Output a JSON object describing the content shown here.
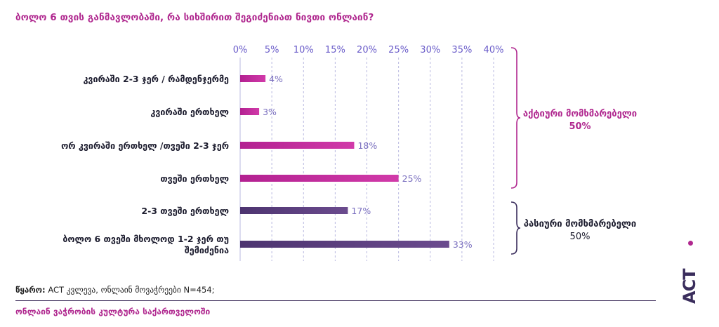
{
  "title": "ბოლო 6 თვის განმავლობაში, რა სიხშირით შეგიძენიათ ნივთი ონლაინ?",
  "chart_data": {
    "type": "bar",
    "orientation": "horizontal",
    "categories": [
      "კვირაში 2-3 ჯერ / რამდენჯერმე",
      "კვირაში ერთხელ",
      "ორ კვირაში ერთხელ /თვეში 2-3 ჯერ",
      "თვეში ერთხელ",
      "2-3 თვეში ერთხელ",
      "ბოლო 6 თვეში მხოლოდ 1-2 ჯერ თუ შემიძენია"
    ],
    "values": [
      4,
      3,
      18,
      25,
      17,
      33
    ],
    "value_labels": [
      "4%",
      "3%",
      "18%",
      "25%",
      "17%",
      "33%"
    ],
    "x_ticks": [
      "0%",
      "5%",
      "10%",
      "15%",
      "20%",
      "25%",
      "30%",
      "35%",
      "40%"
    ],
    "xlim": [
      0,
      40
    ],
    "axis_position": "top",
    "grid": "vertical dashed",
    "groups": [
      {
        "label": "აქტიური მომხმარებელი",
        "value": "50%",
        "categories": [
          0,
          1,
          2,
          3
        ]
      },
      {
        "label": "პასიური მომხმარებელი",
        "value": "50%",
        "categories": [
          4,
          5
        ]
      }
    ]
  },
  "colors": {
    "accent": "#b0288f",
    "dark": "#3a2d5c",
    "active_bar": "#c2309e",
    "passive_bar": "#5b3f7f",
    "tick": "#6a5cc9",
    "grid": "#b9b9e0"
  },
  "source": {
    "label": "წყარო:",
    "text": "ACT კვლევა, ონლაინ მოვაჭრეები N=454;"
  },
  "footer": "ონლაინ ვაჭრობის კულტურა საქართველოში",
  "logo": "ACT"
}
